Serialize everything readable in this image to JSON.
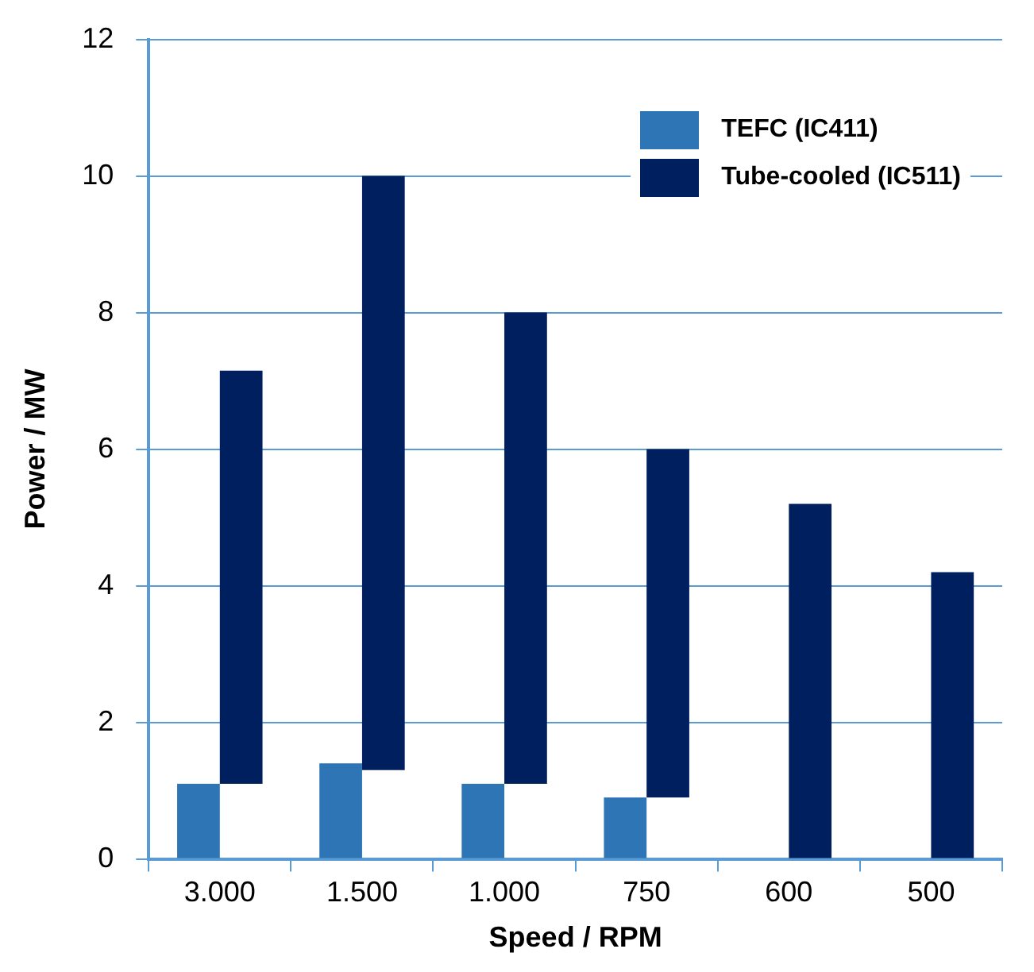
{
  "chart_data": {
    "type": "bar",
    "xlabel": "Speed / RPM",
    "ylabel": "Power / MW",
    "categories": [
      "3.000",
      "1.500",
      "1.000",
      "750",
      "600",
      "500"
    ],
    "series": [
      {
        "name": "TEFC (IC411)",
        "color": "#2e75b6",
        "values": [
          1.1,
          1.4,
          1.1,
          0.9,
          null,
          null
        ]
      },
      {
        "name": "Tube-cooled (IC511)",
        "color": "#001f5f",
        "values": [
          6.05,
          8.7,
          6.9,
          5.1,
          5.2,
          4.2
        ],
        "base": [
          1.1,
          1.3,
          1.1,
          0.9,
          0,
          0
        ]
      }
    ],
    "ylim": [
      0,
      12
    ],
    "yticks": [
      0,
      2,
      4,
      6,
      8,
      10,
      12
    ],
    "grid": "y",
    "legend": "top right"
  }
}
